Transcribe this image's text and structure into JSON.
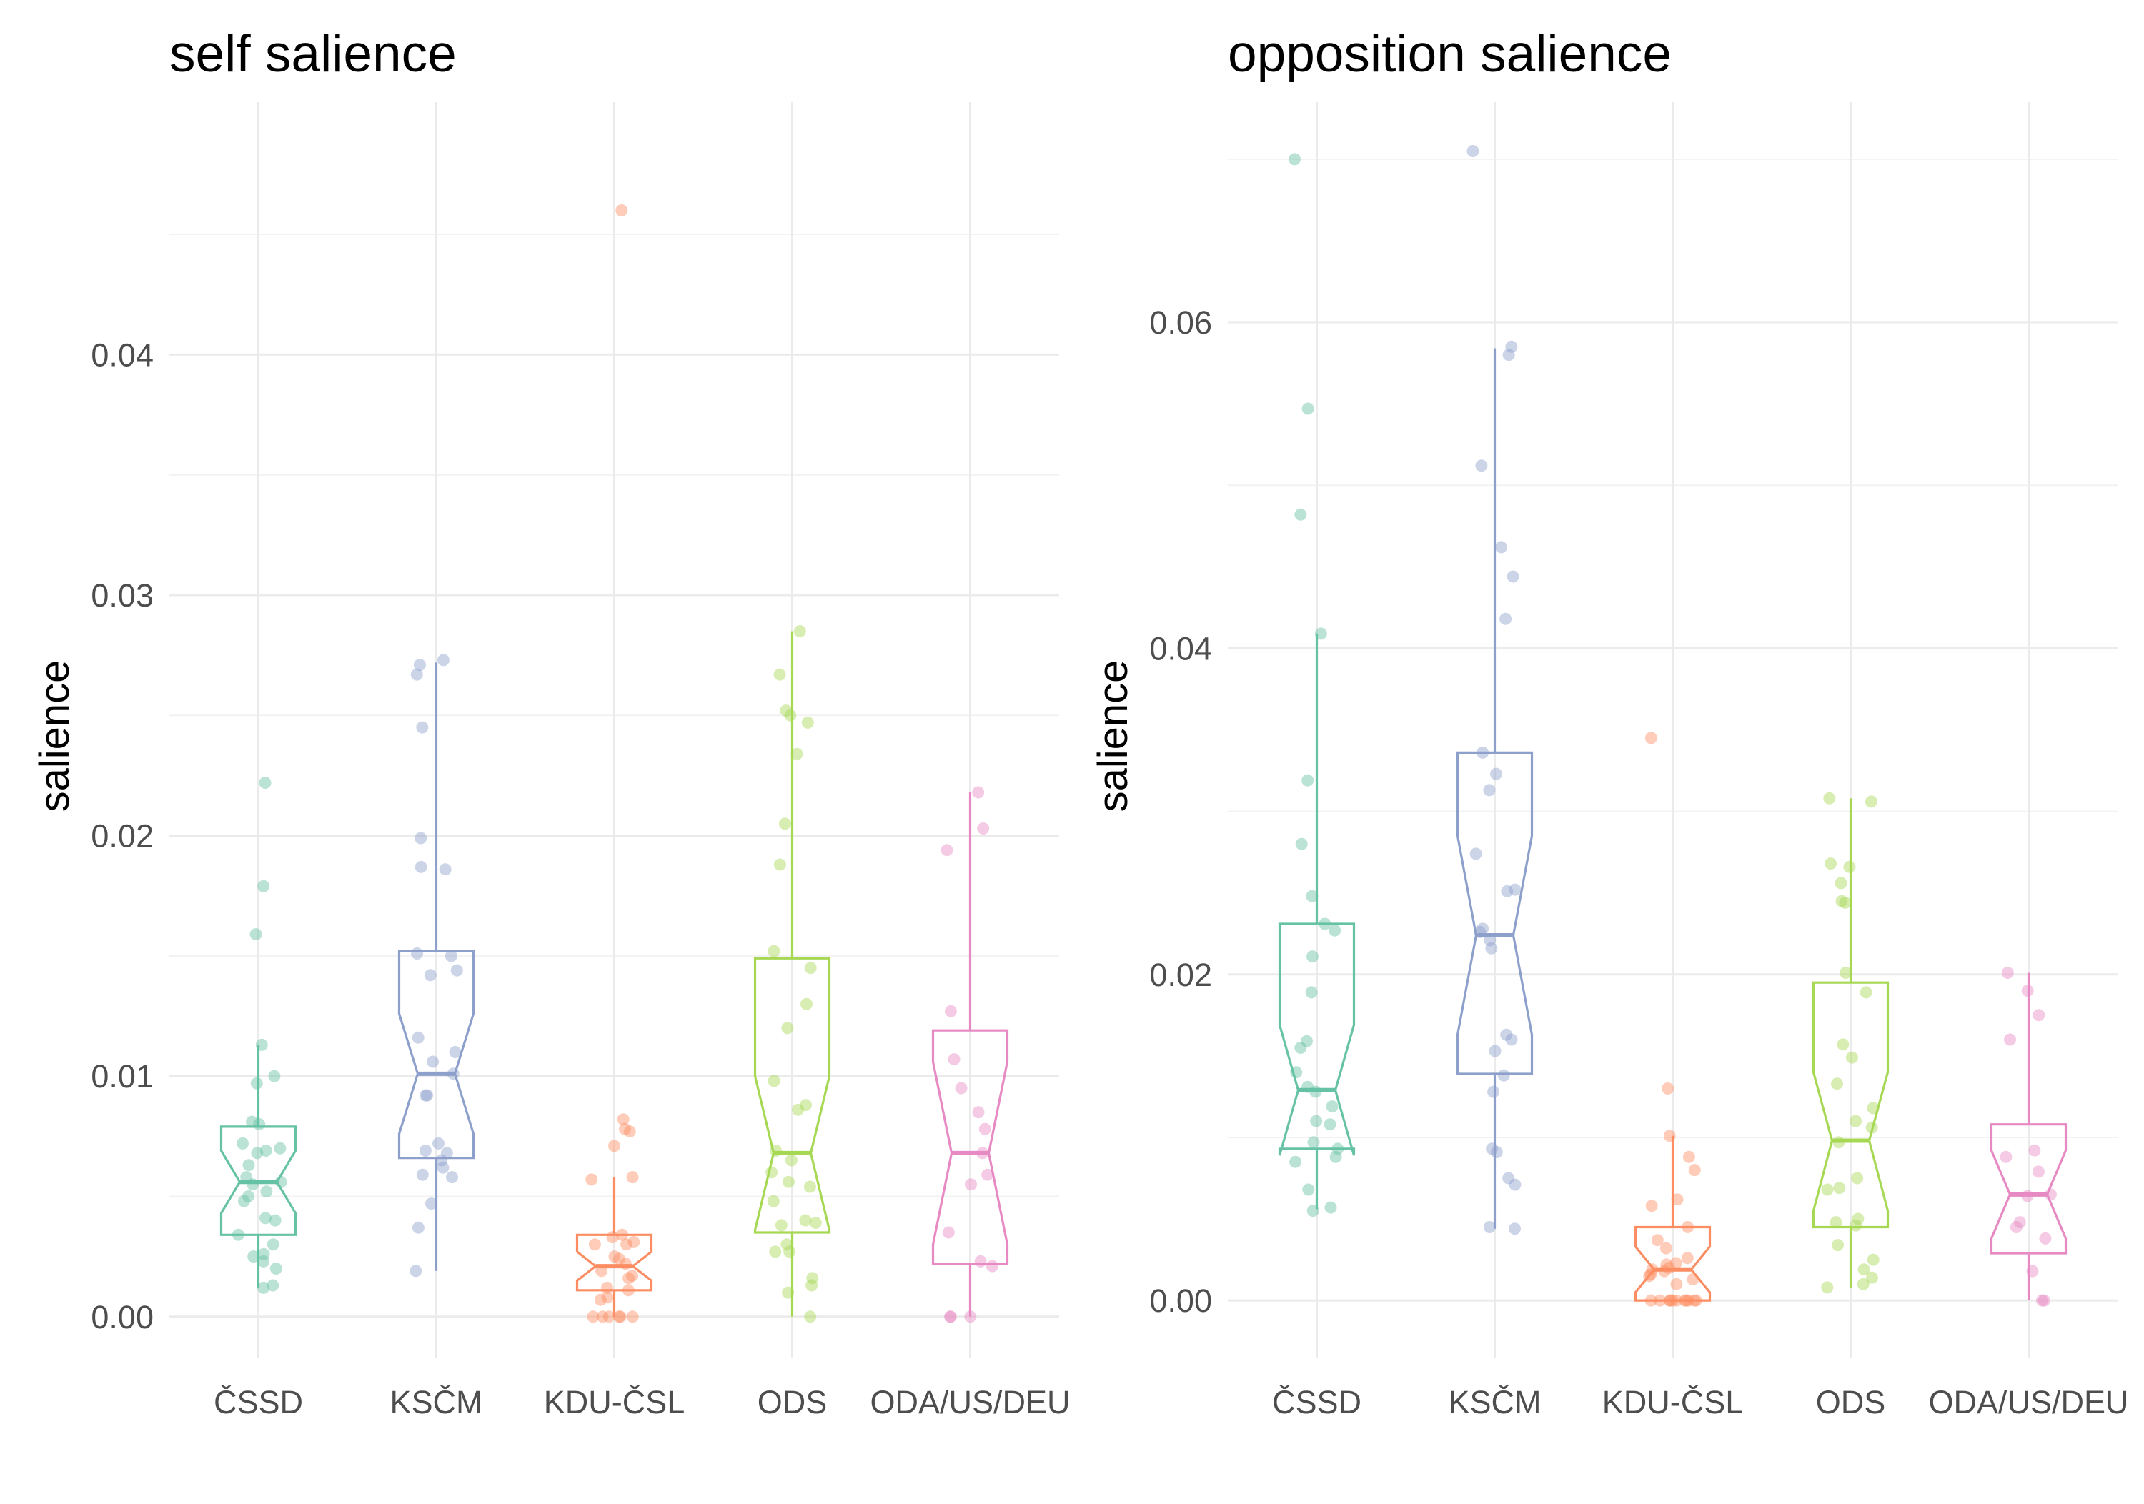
{
  "figure": {
    "palette": {
      "ČSSD": "#66c2a5",
      "KSČM": "#8da0cb",
      "KDU-ČSL": "#fc8d62",
      "ODS": "#a6d854",
      "ODA/US/DEU": "#e78ac3"
    },
    "grid_color": "#ebebeb",
    "tick_color": "#4d4d4d"
  },
  "chart_data": [
    {
      "type": "boxplot",
      "title": "self salience",
      "xlabel": "",
      "ylabel": "salience",
      "categories": [
        "ČSSD",
        "KSČM",
        "KDU-ČSL",
        "ODS",
        "ODA/US/DEU"
      ],
      "ylim": [
        -0.0017,
        0.0505
      ],
      "yticks": [
        0,
        0.01,
        0.02,
        0.03,
        0.04
      ],
      "yticklabels": [
        "0.00",
        "0.01",
        "0.02",
        "0.03",
        "0.04"
      ],
      "grid": true,
      "legend": "none",
      "boxes": [
        {
          "category": "ČSSD",
          "lower_whisker": 0.0012,
          "q1": 0.0034,
          "median": 0.0056,
          "q3": 0.0079,
          "upper_whisker": 0.0113,
          "notch": [
            0.0043,
            0.0069
          ]
        },
        {
          "category": "KSČM",
          "lower_whisker": 0.0019,
          "q1": 0.0066,
          "median": 0.0101,
          "q3": 0.0152,
          "upper_whisker": 0.0272,
          "notch": [
            0.0076,
            0.0126
          ]
        },
        {
          "category": "KDU-ČSL",
          "lower_whisker": 0.0,
          "q1": 0.0011,
          "median": 0.0021,
          "q3": 0.0034,
          "upper_whisker": 0.0058,
          "notch": [
            0.0015,
            0.0027
          ]
        },
        {
          "category": "ODS",
          "lower_whisker": 0.0,
          "q1": 0.0035,
          "median": 0.0068,
          "q3": 0.0149,
          "upper_whisker": 0.0285,
          "notch": [
            0.0036,
            0.01
          ]
        },
        {
          "category": "ODA/US/DEU",
          "lower_whisker": 0.0,
          "q1": 0.0022,
          "median": 0.0068,
          "q3": 0.0119,
          "upper_whisker": 0.0218,
          "notch": [
            0.003,
            0.0106
          ]
        }
      ],
      "points": [
        {
          "category": "ČSSD",
          "values": [
            0.0222,
            0.0179,
            0.0159,
            0.0113,
            0.01,
            0.0097,
            0.0081,
            0.008,
            0.0072,
            0.007,
            0.0069,
            0.0068,
            0.0063,
            0.0058,
            0.0056,
            0.0055,
            0.0052,
            0.005,
            0.0048,
            0.0041,
            0.004,
            0.0034,
            0.003,
            0.0026,
            0.0025,
            0.0023,
            0.002,
            0.0013,
            0.0012
          ]
        },
        {
          "category": "KSČM",
          "values": [
            0.0273,
            0.0271,
            0.0267,
            0.0245,
            0.0199,
            0.0187,
            0.0186,
            0.0151,
            0.015,
            0.0144,
            0.0142,
            0.0116,
            0.011,
            0.0106,
            0.0101,
            0.0092,
            0.0092,
            0.0072,
            0.0069,
            0.0068,
            0.0065,
            0.0062,
            0.0059,
            0.0058,
            0.0047,
            0.0037,
            0.0019
          ]
        },
        {
          "category": "KDU-ČSL",
          "values": [
            0.046,
            0.0082,
            0.0078,
            0.0077,
            0.0071,
            0.0058,
            0.0057,
            0.0034,
            0.0033,
            0.0031,
            0.003,
            0.003,
            0.0025,
            0.0024,
            0.0022,
            0.0019,
            0.0017,
            0.0016,
            0.0012,
            0.0011,
            0.0008,
            0.0007,
            0.0,
            0.0,
            0.0,
            0.0,
            0.0,
            0.0
          ]
        },
        {
          "category": "ODS",
          "values": [
            0.0285,
            0.0267,
            0.0252,
            0.025,
            0.0247,
            0.0234,
            0.0205,
            0.0188,
            0.0152,
            0.0145,
            0.013,
            0.012,
            0.0098,
            0.0088,
            0.0086,
            0.0069,
            0.0065,
            0.006,
            0.0056,
            0.0054,
            0.0048,
            0.004,
            0.0039,
            0.0038,
            0.003,
            0.0027,
            0.0027,
            0.0016,
            0.0013,
            0.001,
            0.0
          ]
        },
        {
          "category": "ODA/US/DEU",
          "values": [
            0.0218,
            0.0203,
            0.0194,
            0.0127,
            0.0107,
            0.0095,
            0.0085,
            0.0078,
            0.0068,
            0.0059,
            0.0055,
            0.0035,
            0.0023,
            0.0021,
            0.0,
            0.0,
            0.0
          ]
        }
      ]
    },
    {
      "type": "boxplot",
      "title": "opposition salience",
      "xlabel": "",
      "ylabel": "salience",
      "categories": [
        "ČSSD",
        "KSČM",
        "KDU-ČSL",
        "ODS",
        "ODA/US/DEU"
      ],
      "ylim": [
        -0.0035,
        0.0735
      ],
      "yticks": [
        0,
        0.02,
        0.04,
        0.06
      ],
      "yticklabels": [
        "0.00",
        "0.02",
        "0.04",
        "0.06"
      ],
      "grid": true,
      "legend": "none",
      "boxes": [
        {
          "category": "ČSSD",
          "lower_whisker": 0.0056,
          "q1": 0.0093,
          "median": 0.0129,
          "q3": 0.0231,
          "upper_whisker": 0.0409,
          "notch": [
            0.0089,
            0.0169
          ]
        },
        {
          "category": "KSČM",
          "lower_whisker": 0.0044,
          "q1": 0.0139,
          "median": 0.0224,
          "q3": 0.0336,
          "upper_whisker": 0.0584,
          "notch": [
            0.0163,
            0.0285
          ]
        },
        {
          "category": "KDU-ČSL",
          "lower_whisker": 0.0,
          "q1": 0.0,
          "median": 0.0019,
          "q3": 0.0045,
          "upper_whisker": 0.0101,
          "notch": [
            0.0005,
            0.0033
          ]
        },
        {
          "category": "ODS",
          "lower_whisker": 0.0008,
          "q1": 0.0045,
          "median": 0.0098,
          "q3": 0.0195,
          "upper_whisker": 0.0308,
          "notch": [
            0.0055,
            0.014
          ]
        },
        {
          "category": "ODA/US/DEU",
          "lower_whisker": 0.0,
          "q1": 0.0029,
          "median": 0.0065,
          "q3": 0.0108,
          "upper_whisker": 0.0201,
          "notch": [
            0.0038,
            0.0092
          ]
        }
      ],
      "points": [
        {
          "category": "ČSSD",
          "values": [
            0.07,
            0.0547,
            0.0482,
            0.0409,
            0.0319,
            0.028,
            0.0248,
            0.0231,
            0.0227,
            0.0211,
            0.0189,
            0.0159,
            0.0155,
            0.014,
            0.0131,
            0.0128,
            0.0119,
            0.011,
            0.0108,
            0.0097,
            0.0093,
            0.0088,
            0.0085,
            0.0068,
            0.0057,
            0.0055
          ]
        },
        {
          "category": "KSČM",
          "values": [
            0.0705,
            0.0585,
            0.058,
            0.0512,
            0.0462,
            0.0444,
            0.0418,
            0.0336,
            0.0323,
            0.0313,
            0.0274,
            0.0252,
            0.0251,
            0.0228,
            0.0226,
            0.0221,
            0.0216,
            0.0163,
            0.016,
            0.0153,
            0.0138,
            0.0128,
            0.0093,
            0.0091,
            0.0075,
            0.0071,
            0.0045,
            0.0044
          ]
        },
        {
          "category": "KDU-ČSL",
          "values": [
            0.0345,
            0.013,
            0.0101,
            0.0088,
            0.008,
            0.0062,
            0.0058,
            0.0045,
            0.0037,
            0.0032,
            0.0026,
            0.0023,
            0.0022,
            0.002,
            0.0019,
            0.0018,
            0.0016,
            0.0015,
            0.0013,
            0.001,
            0.0,
            0.0,
            0.0,
            0.0,
            0.0,
            0.0,
            0.0,
            0.0,
            0.0,
            0.0,
            0.0
          ]
        },
        {
          "category": "ODS",
          "values": [
            0.0308,
            0.0306,
            0.0268,
            0.0266,
            0.0256,
            0.0245,
            0.0244,
            0.0201,
            0.0189,
            0.0157,
            0.0149,
            0.0133,
            0.0118,
            0.011,
            0.0106,
            0.0097,
            0.0075,
            0.0069,
            0.0068,
            0.005,
            0.0048,
            0.0046,
            0.0034,
            0.0025,
            0.0019,
            0.0014,
            0.001,
            0.0008
          ]
        },
        {
          "category": "ODA/US/DEU",
          "values": [
            0.0201,
            0.019,
            0.0175,
            0.016,
            0.0092,
            0.0088,
            0.0079,
            0.0065,
            0.0064,
            0.0048,
            0.0045,
            0.0038,
            0.0018,
            0.0,
            0.0
          ]
        }
      ]
    }
  ]
}
